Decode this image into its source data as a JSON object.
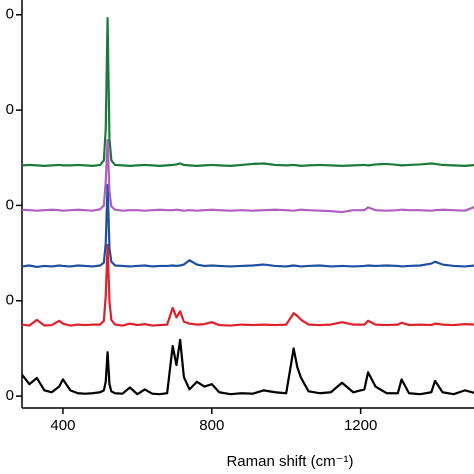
{
  "chart_data": {
    "type": "line",
    "xlabel": "Raman shift (cm⁻¹)",
    "x": [
      290,
      310,
      330,
      350,
      370,
      390,
      400,
      420,
      440,
      460,
      480,
      500,
      510,
      515,
      520,
      525,
      530,
      540,
      560,
      580,
      600,
      620,
      640,
      660,
      680,
      695,
      705,
      715,
      725,
      740,
      760,
      780,
      800,
      820,
      850,
      880,
      910,
      940,
      970,
      1000,
      1020,
      1030,
      1040,
      1060,
      1090,
      1120,
      1150,
      1180,
      1210,
      1220,
      1240,
      1270,
      1300,
      1310,
      1330,
      1360,
      1390,
      1400,
      1420,
      1450,
      1480,
      1510
    ],
    "xlim": [
      290,
      1510
    ],
    "xticks": [
      400,
      800,
      1200
    ],
    "ylim": [
      -25,
      831
    ],
    "yticks": [
      {
        "value": 0,
        "label": "0"
      },
      {
        "value": 200,
        "label": "0"
      },
      {
        "value": 400,
        "label": "0"
      },
      {
        "value": 600,
        "label": "0"
      },
      {
        "value": 800,
        "label": "0"
      }
    ],
    "series": [
      {
        "color": "#000000",
        "values": [
          45,
          25,
          38,
          12,
          8,
          20,
          35,
          12,
          6,
          5,
          6,
          8,
          12,
          30,
          92,
          25,
          10,
          6,
          5,
          18,
          4,
          14,
          5,
          4,
          6,
          105,
          65,
          118,
          40,
          14,
          30,
          20,
          25,
          8,
          4,
          6,
          5,
          12,
          8,
          6,
          100,
          60,
          38,
          10,
          6,
          8,
          28,
          8,
          14,
          50,
          20,
          6,
          6,
          35,
          6,
          4,
          8,
          32,
          8,
          4,
          12,
          6
        ]
      },
      {
        "color": "#e0202a",
        "values": [
          150,
          148,
          160,
          148,
          149,
          158,
          152,
          148,
          150,
          149,
          150,
          150,
          158,
          210,
          317,
          200,
          160,
          150,
          148,
          152,
          149,
          151,
          148,
          149,
          150,
          185,
          165,
          178,
          156,
          152,
          150,
          151,
          155,
          149,
          148,
          150,
          149,
          150,
          149,
          150,
          174,
          168,
          160,
          150,
          149,
          150,
          155,
          150,
          150,
          158,
          150,
          149,
          150,
          154,
          149,
          150,
          149,
          152,
          150,
          149,
          151,
          150
        ]
      },
      {
        "color": "#1f4fa0",
        "values": [
          272,
          274,
          271,
          273,
          272,
          274,
          273,
          272,
          274,
          273,
          272,
          274,
          280,
          320,
          443,
          310,
          282,
          274,
          273,
          272,
          273,
          274,
          272,
          273,
          273,
          274,
          273,
          274,
          276,
          285,
          276,
          273,
          274,
          273,
          272,
          273,
          274,
          276,
          273,
          272,
          274,
          273,
          272,
          273,
          274,
          272,
          273,
          272,
          273,
          274,
          273,
          274,
          273,
          272,
          273,
          274,
          278,
          282,
          276,
          273,
          272,
          274
        ]
      },
      {
        "color": "#b05fc0",
        "values": [
          391,
          390,
          389,
          390,
          391,
          390,
          389,
          390,
          391,
          390,
          389,
          392,
          400,
          450,
          537,
          430,
          398,
          391,
          389,
          390,
          390,
          389,
          390,
          391,
          390,
          390,
          391,
          390,
          389,
          390,
          389,
          390,
          391,
          390,
          389,
          390,
          389,
          390,
          391,
          390,
          389,
          390,
          391,
          390,
          389,
          388,
          386,
          390,
          390,
          396,
          390,
          389,
          390,
          391,
          390,
          390,
          389,
          390,
          391,
          390,
          389,
          398
        ]
      },
      {
        "color": "#1a7a3a",
        "values": [
          484,
          485,
          484,
          483,
          484,
          485,
          484,
          484,
          485,
          484,
          483,
          485,
          495,
          560,
          793,
          540,
          495,
          485,
          484,
          483,
          484,
          485,
          484,
          483,
          484,
          485,
          486,
          488,
          485,
          484,
          483,
          484,
          485,
          484,
          483,
          485,
          487,
          488,
          485,
          484,
          485,
          484,
          483,
          484,
          485,
          484,
          483,
          484,
          485,
          484,
          486,
          487,
          485,
          484,
          485,
          486,
          488,
          487,
          485,
          484,
          483,
          485
        ]
      }
    ]
  }
}
